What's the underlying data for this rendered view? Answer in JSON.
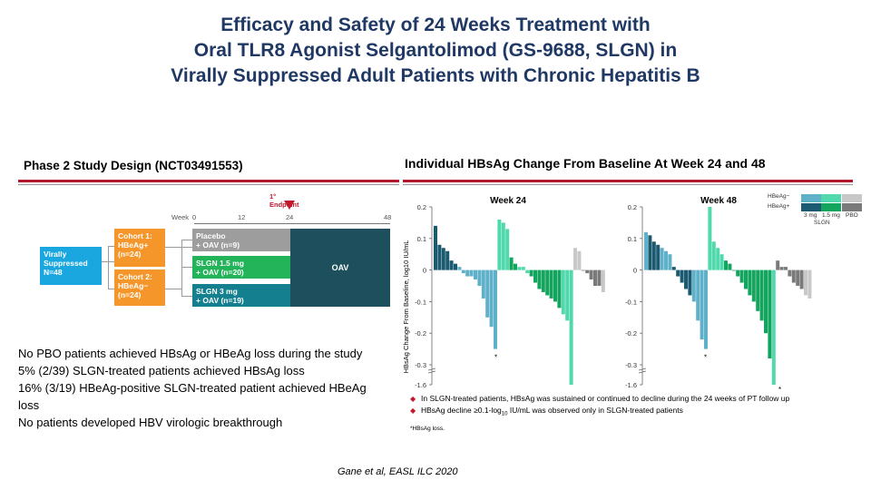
{
  "title": {
    "line1": "Efficacy and Safety of 24 Weeks Treatment with",
    "line2": "Oral TLR8 Agonist Selgantolimod (GS-9688, SLGN) in",
    "line3": "Virally Suppressed Adult Patients with Chronic Hepatitis B"
  },
  "study_design": {
    "heading": "Phase 2 Study Design (NCT03491553)",
    "endpoint_label": "1° Endpoint",
    "week_label": "Week",
    "week_ticks": [
      "0",
      "12",
      "24",
      "48"
    ],
    "virally_suppressed": [
      "Virally",
      "Suppressed",
      "N=48"
    ],
    "cohort1": [
      "Cohort 1:",
      "HBeAg+",
      "(n=24)"
    ],
    "cohort2": [
      "Cohort 2:",
      "HBeAg−",
      "(n=24)"
    ],
    "arm_placebo": [
      "Placebo",
      "+ OAV (n=9)"
    ],
    "arm_slgn15": [
      "SLGN 1.5 mg",
      "+ OAV (n=20)"
    ],
    "arm_slgn3": [
      "SLGN 3 mg",
      "+ OAV (n=19)"
    ],
    "oav_label": "OAV",
    "colors": {
      "blue": "#1aa7e0",
      "orange": "#f5962a",
      "grey": "#9d9d9d",
      "green": "#23b45a",
      "teal": "#14808f",
      "dark": "#1d4f5c"
    }
  },
  "notes": [
    "No PBO patients achieved HBsAg or HBeAg loss during the study",
    "5% (2/39) SLGN-treated patients achieved HBsAg loss",
    "16% (3/19) HBeAg-positive SLGN-treated patient achieved HBeAg loss",
    "No patients developed HBV virologic breakthrough"
  ],
  "citation": "Gane et al, EASL ILC 2020",
  "chart_heading": "Individual HBsAg Change From Baseline At Week 24 and 48",
  "footnotes": {
    "line1": "In SLGN-treated patients, HBsAg was sustained or continued to decline during the 24 weeks of PT follow up",
    "line2_pre": "HBsAg decline ≥0.1-log",
    "line2_sub": "10",
    "line2_post": " IU/mL was observed only in SLGN-treated patients",
    "line3": "*HBsAg loss."
  },
  "legend": {
    "hbeag_neg": "HBeAg−",
    "hbeag_pos": "HBeAg+",
    "col1": "3 mg",
    "col2": "1.5 mg",
    "col3": "PBO",
    "group": "SLGN",
    "colors": {
      "neg_3mg": "#5fb0c9",
      "neg_15mg": "#4fd9ac",
      "neg_pbo": "#c8c8c8",
      "pos_3mg": "#1b5a70",
      "pos_15mg": "#13a45d",
      "pos_pbo": "#7a7a7a"
    }
  },
  "chart_data": [
    {
      "type": "bar",
      "title": "Week 24",
      "ylabel": "HBsAg Change From Baseline, log10 IU/mL",
      "y_ticks": [
        "0.2",
        "0.1",
        "0",
        "-0.1",
        "-0.2",
        "-0.3",
        "-1.6"
      ],
      "ylim": [
        -1.6,
        0.2
      ],
      "axis_break": "between -0.3 and -1.6",
      "series": [
        {
          "key": "pos_3mg",
          "values": [
            0.14,
            0.08,
            0.07,
            0.06,
            0.03,
            0.02
          ]
        },
        {
          "key": "neg_3mg",
          "values": [
            0.01,
            -0.01,
            -0.02,
            -0.02,
            -0.03,
            -0.05,
            -0.09,
            -0.15,
            -0.18,
            -0.25
          ]
        },
        {
          "key": "neg_15mg",
          "values": [
            0.16,
            0.15,
            0.13
          ]
        },
        {
          "key": "pos_15mg",
          "values": [
            0.04,
            0.02
          ]
        },
        {
          "key": "neg_15mg",
          "values": [
            0.01,
            0.01,
            -0.01
          ]
        },
        {
          "key": "pos_15mg",
          "values": [
            -0.02,
            -0.04,
            -0.06,
            -0.07,
            -0.08,
            -0.09,
            -0.1,
            -0.12
          ]
        },
        {
          "key": "neg_15mg",
          "values": [
            -0.14,
            -0.16,
            -1.6
          ]
        },
        {
          "key": "neg_pbo",
          "values": [
            0.07,
            0.06
          ]
        },
        {
          "key": "pos_pbo",
          "values": [
            0.0,
            -0.01,
            -0.03,
            -0.05,
            -0.05
          ]
        },
        {
          "key": "neg_pbo",
          "values": [
            -0.07
          ]
        }
      ],
      "hbsag_loss_markers": [
        "3 mg HBeAg− (last)"
      ]
    },
    {
      "type": "bar",
      "title": "Week 48",
      "ylabel": "HBsAg Change From Baseline, log10 IU/mL",
      "y_ticks": [
        "0.2",
        "0.1",
        "0",
        "-0.1",
        "-0.2",
        "-0.3",
        "-1.6"
      ],
      "ylim": [
        -1.6,
        0.2
      ],
      "axis_break": "between -0.3 and -1.6",
      "series": [
        {
          "key": "neg_3mg",
          "values": [
            0.12
          ]
        },
        {
          "key": "pos_3mg",
          "values": [
            0.11,
            0.09,
            0.08
          ]
        },
        {
          "key": "neg_3mg",
          "values": [
            0.07,
            0.06,
            0.05
          ]
        },
        {
          "key": "pos_3mg",
          "values": [
            0.01,
            -0.02,
            -0.04,
            -0.06,
            -0.08
          ]
        },
        {
          "key": "neg_3mg",
          "values": [
            -0.1,
            -0.16,
            -0.22,
            -0.25
          ]
        },
        {
          "key": "neg_15mg",
          "values": [
            0.2,
            0.09,
            0.07,
            0.05
          ]
        },
        {
          "key": "pos_15mg",
          "values": [
            0.03,
            0.02,
            0.0,
            -0.02,
            -0.04,
            -0.06,
            -0.08,
            -0.1,
            -0.13,
            -0.16,
            -0.2,
            -0.28
          ]
        },
        {
          "key": "neg_15mg",
          "values": [
            -1.6
          ]
        },
        {
          "key": "pos_pbo",
          "values": [
            0.03,
            0.01,
            0.01,
            -0.02,
            -0.04,
            -0.05,
            -0.06
          ]
        },
        {
          "key": "neg_pbo",
          "values": [
            -0.08,
            -0.09
          ]
        }
      ],
      "hbsag_loss_markers": [
        "3 mg HBeAg− (last)",
        "1.5 mg HBeAg− (last)"
      ]
    }
  ]
}
